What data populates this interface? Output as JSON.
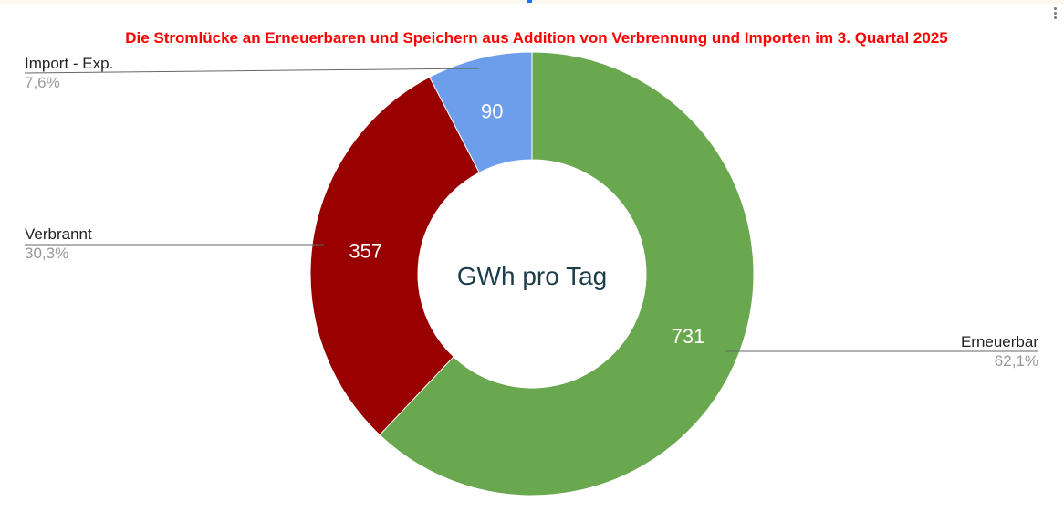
{
  "chart_data": {
    "type": "pie",
    "subtype": "donut",
    "title": "Die Stromlücke an Erneuerbaren und Speichern aus Addition von Verbrennung und Importen im 3. Quartal  2025",
    "center_label": "GWh pro Tag",
    "slices": [
      {
        "label": "Erneuerbar",
        "value": 731,
        "percent": "62,1%",
        "color": "#6aa84f"
      },
      {
        "label": "Verbrannt",
        "value": 357,
        "percent": "30,3%",
        "color": "#990000"
      },
      {
        "label": "Import - Exp.",
        "value": 90,
        "percent": "7,6%",
        "color": "#6d9eeb"
      }
    ],
    "title_color": "#ff0000"
  }
}
